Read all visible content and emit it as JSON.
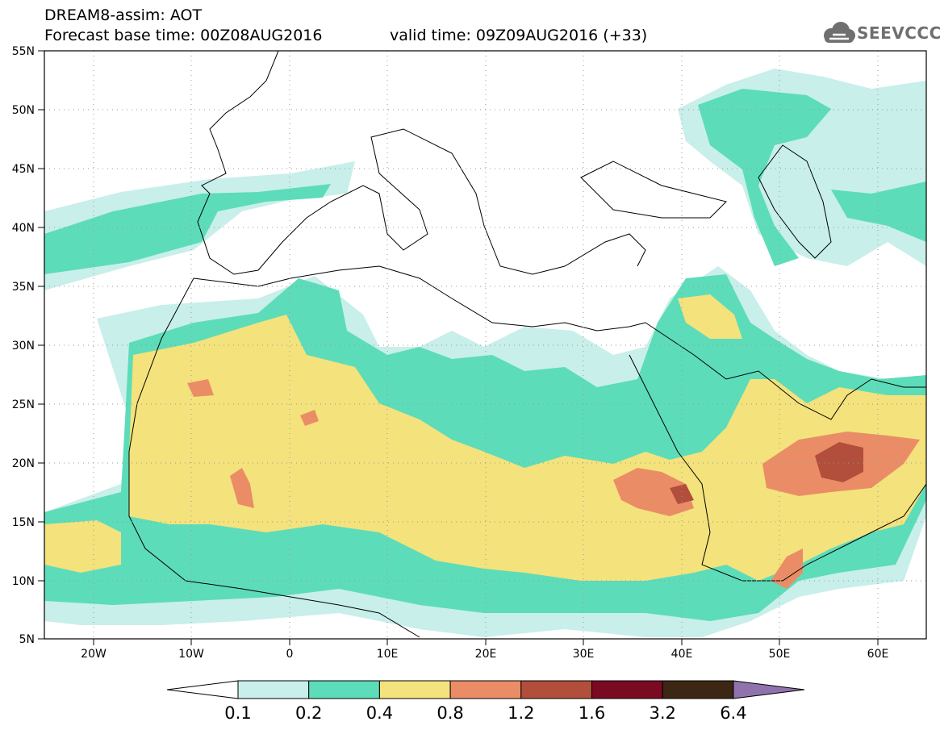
{
  "header": {
    "title": "DREAM8-assim: AOT",
    "base_time": "Forecast base time: 00Z08AUG2016",
    "valid_time": "valid time: 09Z09AUG2016 (+33)",
    "logo_text": "SEEVCCC"
  },
  "map": {
    "lon_range": [
      -25,
      65
    ],
    "lat_range": [
      5,
      55
    ],
    "lat_ticks": [
      "55N",
      "50N",
      "45N",
      "40N",
      "35N",
      "30N",
      "25N",
      "20N",
      "15N",
      "10N",
      "5N"
    ],
    "lon_ticks": [
      "20W",
      "10W",
      "0",
      "10E",
      "20E",
      "30E",
      "40E",
      "50E",
      "60E"
    ],
    "grid": true
  },
  "colorbar": {
    "labels": [
      "0.1",
      "0.2",
      "0.4",
      "0.8",
      "1.2",
      "1.6",
      "3.2",
      "6.4"
    ],
    "colors": [
      "#ffffff",
      "#c8efea",
      "#5ddcb9",
      "#f4e27c",
      "#ea8d66",
      "#b14e3c",
      "#7a0a22",
      "#3d2714",
      "#9073ac"
    ]
  }
}
